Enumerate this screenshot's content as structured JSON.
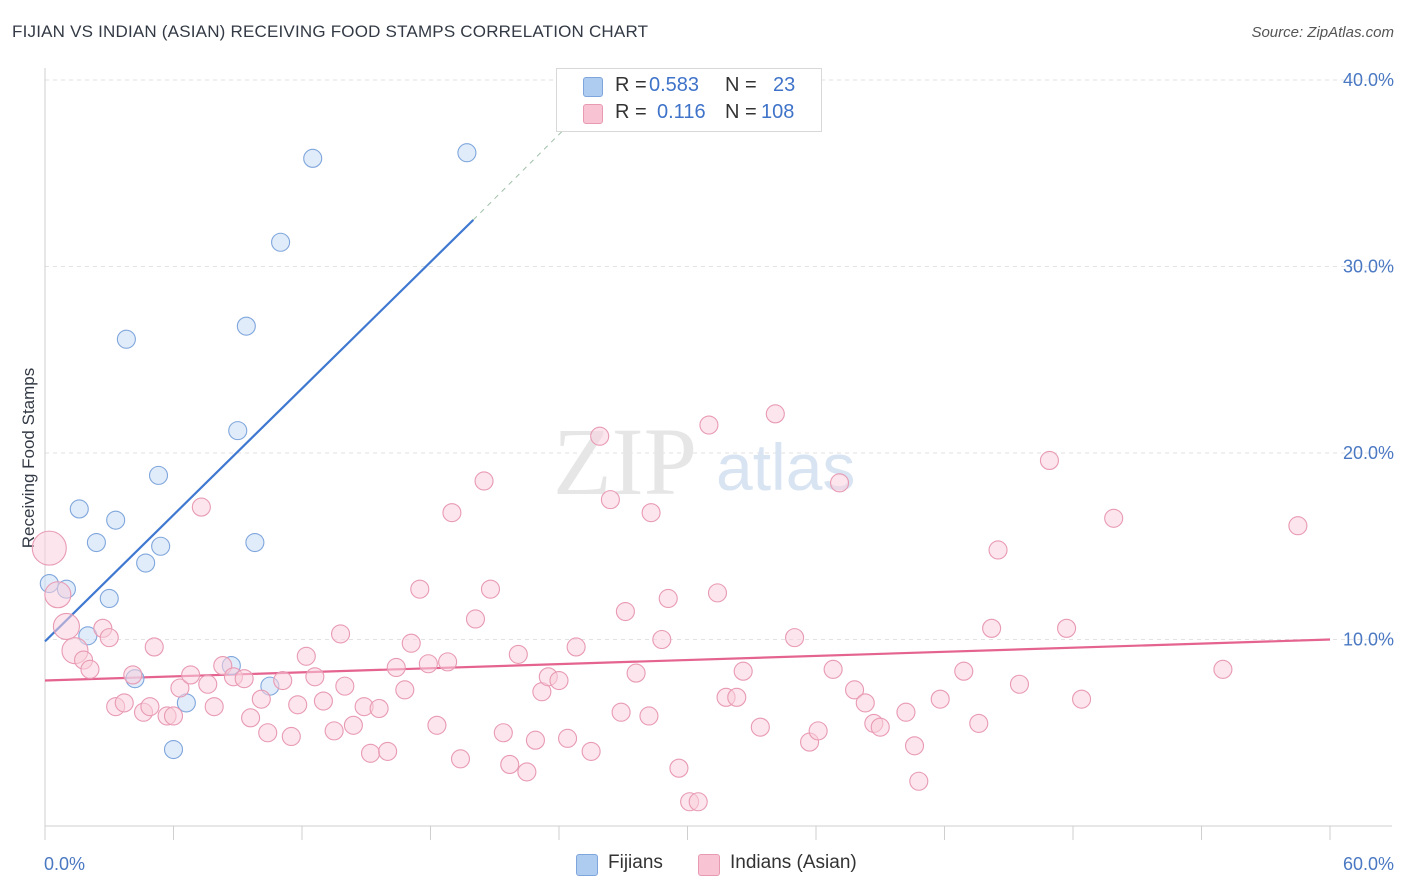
{
  "title": "FIJIAN VS INDIAN (ASIAN) RECEIVING FOOD STAMPS CORRELATION CHART",
  "source": "Source: ZipAtlas.com",
  "watermark": {
    "zip": "ZIP",
    "atlas": "atlas"
  },
  "legend": {
    "r_label": "R =",
    "n_label": "N =",
    "fijians": {
      "r": "0.583",
      "n": "23",
      "color": "#aecbf0",
      "border": "#7fa6dc"
    },
    "indians": {
      "r": "0.116",
      "n": "108",
      "color": "#f8c3d3",
      "border": "#e89ab3"
    }
  },
  "bottom_legend": {
    "fijians": "Fijians",
    "indians": "Indians (Asian)"
  },
  "chart_data": {
    "type": "scatter",
    "title": "FIJIAN VS INDIAN (ASIAN) RECEIVING FOOD STAMPS CORRELATION CHART",
    "xlabel": "",
    "ylabel": "Receiving Food Stamps",
    "xlim": [
      0,
      60
    ],
    "ylim": [
      0,
      40
    ],
    "x_ticks": [
      "0.0%",
      "60.0%"
    ],
    "y_ticks": [
      {
        "value": 10,
        "label": "10.0%"
      },
      {
        "value": 20,
        "label": "20.0%"
      },
      {
        "value": 30,
        "label": "30.0%"
      },
      {
        "value": 40,
        "label": "40.0%"
      }
    ],
    "grid": true,
    "legend_position": "top-center",
    "series": [
      {
        "name": "Fijians",
        "color": "#7fa6dc",
        "fill": "#c9dcf6",
        "trend": {
          "x": [
            0,
            20
          ],
          "y": [
            9.9,
            32.5
          ],
          "dashed_to": [
            25.5,
            38.8
          ],
          "color": "#3f78d0"
        },
        "points": [
          {
            "x": 0.2,
            "y": 13.0
          },
          {
            "x": 1.0,
            "y": 12.7
          },
          {
            "x": 1.6,
            "y": 17.0
          },
          {
            "x": 2.0,
            "y": 10.2
          },
          {
            "x": 2.4,
            "y": 15.2
          },
          {
            "x": 3.0,
            "y": 12.2
          },
          {
            "x": 3.3,
            "y": 16.4
          },
          {
            "x": 3.8,
            "y": 26.1
          },
          {
            "x": 4.2,
            "y": 7.9
          },
          {
            "x": 4.7,
            "y": 14.1
          },
          {
            "x": 5.3,
            "y": 18.8
          },
          {
            "x": 5.4,
            "y": 15.0
          },
          {
            "x": 6.0,
            "y": 4.1
          },
          {
            "x": 6.6,
            "y": 6.6
          },
          {
            "x": 8.7,
            "y": 8.6
          },
          {
            "x": 9.0,
            "y": 21.2
          },
          {
            "x": 9.4,
            "y": 26.8
          },
          {
            "x": 9.8,
            "y": 15.2
          },
          {
            "x": 10.5,
            "y": 7.5
          },
          {
            "x": 11.0,
            "y": 31.3
          },
          {
            "x": 12.5,
            "y": 35.8
          },
          {
            "x": 19.7,
            "y": 36.1
          }
        ]
      },
      {
        "name": "Indians (Asian)",
        "color": "#e89ab3",
        "fill": "#f9d0dc",
        "trend": {
          "x": [
            0,
            60
          ],
          "y": [
            7.8,
            10.0
          ],
          "color": "#e4638f"
        },
        "points": [
          {
            "x": 0.2,
            "y": 14.9,
            "big": true
          },
          {
            "x": 0.6,
            "y": 12.4,
            "big": true
          },
          {
            "x": 1.0,
            "y": 10.7,
            "big": true
          },
          {
            "x": 1.4,
            "y": 9.4,
            "big": true
          },
          {
            "x": 1.8,
            "y": 8.9
          },
          {
            "x": 2.1,
            "y": 8.4
          },
          {
            "x": 2.7,
            "y": 10.6
          },
          {
            "x": 3.0,
            "y": 10.1
          },
          {
            "x": 3.3,
            "y": 6.4
          },
          {
            "x": 3.7,
            "y": 6.6
          },
          {
            "x": 4.1,
            "y": 8.1
          },
          {
            "x": 4.6,
            "y": 6.1
          },
          {
            "x": 4.9,
            "y": 6.4
          },
          {
            "x": 5.1,
            "y": 9.6
          },
          {
            "x": 5.7,
            "y": 5.9
          },
          {
            "x": 6.0,
            "y": 5.9
          },
          {
            "x": 6.3,
            "y": 7.4
          },
          {
            "x": 6.8,
            "y": 8.1
          },
          {
            "x": 7.3,
            "y": 17.1
          },
          {
            "x": 7.6,
            "y": 7.6
          },
          {
            "x": 7.9,
            "y": 6.4
          },
          {
            "x": 8.3,
            "y": 8.6
          },
          {
            "x": 8.8,
            "y": 8.0
          },
          {
            "x": 9.3,
            "y": 7.9
          },
          {
            "x": 9.6,
            "y": 5.8
          },
          {
            "x": 10.1,
            "y": 6.8
          },
          {
            "x": 10.4,
            "y": 5.0
          },
          {
            "x": 11.1,
            "y": 7.8
          },
          {
            "x": 11.5,
            "y": 4.8
          },
          {
            "x": 11.8,
            "y": 6.5
          },
          {
            "x": 12.2,
            "y": 9.1
          },
          {
            "x": 12.6,
            "y": 8.0
          },
          {
            "x": 13.0,
            "y": 6.7
          },
          {
            "x": 13.5,
            "y": 5.1
          },
          {
            "x": 13.8,
            "y": 10.3
          },
          {
            "x": 14.0,
            "y": 7.5
          },
          {
            "x": 14.4,
            "y": 5.4
          },
          {
            "x": 14.9,
            "y": 6.4
          },
          {
            "x": 15.2,
            "y": 3.9
          },
          {
            "x": 15.6,
            "y": 6.3
          },
          {
            "x": 16.0,
            "y": 4.0
          },
          {
            "x": 16.4,
            "y": 8.5
          },
          {
            "x": 16.8,
            "y": 7.3
          },
          {
            "x": 17.1,
            "y": 9.8
          },
          {
            "x": 17.5,
            "y": 12.7
          },
          {
            "x": 17.9,
            "y": 8.7
          },
          {
            "x": 18.3,
            "y": 5.4
          },
          {
            "x": 18.8,
            "y": 8.8
          },
          {
            "x": 19.0,
            "y": 16.8
          },
          {
            "x": 19.4,
            "y": 3.6
          },
          {
            "x": 20.1,
            "y": 11.1
          },
          {
            "x": 20.5,
            "y": 18.5
          },
          {
            "x": 20.8,
            "y": 12.7
          },
          {
            "x": 21.4,
            "y": 5.0
          },
          {
            "x": 21.7,
            "y": 3.3
          },
          {
            "x": 22.1,
            "y": 9.2
          },
          {
            "x": 22.5,
            "y": 2.9
          },
          {
            "x": 22.9,
            "y": 4.6
          },
          {
            "x": 23.2,
            "y": 7.2
          },
          {
            "x": 23.5,
            "y": 8.0
          },
          {
            "x": 24.0,
            "y": 7.8
          },
          {
            "x": 24.4,
            "y": 4.7
          },
          {
            "x": 24.8,
            "y": 9.6
          },
          {
            "x": 25.5,
            "y": 4.0
          },
          {
            "x": 25.9,
            "y": 20.9
          },
          {
            "x": 26.4,
            "y": 17.5
          },
          {
            "x": 26.9,
            "y": 6.1
          },
          {
            "x": 27.1,
            "y": 11.5
          },
          {
            "x": 27.6,
            "y": 8.2
          },
          {
            "x": 28.2,
            "y": 5.9
          },
          {
            "x": 28.3,
            "y": 16.8
          },
          {
            "x": 28.8,
            "y": 10.0
          },
          {
            "x": 29.1,
            "y": 12.2
          },
          {
            "x": 29.6,
            "y": 3.1
          },
          {
            "x": 30.1,
            "y": 1.3
          },
          {
            "x": 30.5,
            "y": 1.3
          },
          {
            "x": 31.0,
            "y": 21.5
          },
          {
            "x": 31.4,
            "y": 12.5
          },
          {
            "x": 31.8,
            "y": 6.9
          },
          {
            "x": 32.3,
            "y": 6.9
          },
          {
            "x": 32.6,
            "y": 8.3
          },
          {
            "x": 33.4,
            "y": 5.3
          },
          {
            "x": 34.1,
            "y": 22.1
          },
          {
            "x": 35.0,
            "y": 10.1
          },
          {
            "x": 35.7,
            "y": 4.5
          },
          {
            "x": 36.1,
            "y": 5.1
          },
          {
            "x": 36.8,
            "y": 8.4
          },
          {
            "x": 37.1,
            "y": 18.4
          },
          {
            "x": 37.8,
            "y": 7.3
          },
          {
            "x": 38.3,
            "y": 6.6
          },
          {
            "x": 38.7,
            "y": 5.5
          },
          {
            "x": 39.0,
            "y": 5.3
          },
          {
            "x": 40.2,
            "y": 6.1
          },
          {
            "x": 40.6,
            "y": 4.3
          },
          {
            "x": 40.8,
            "y": 2.4
          },
          {
            "x": 41.8,
            "y": 6.8
          },
          {
            "x": 42.9,
            "y": 8.3
          },
          {
            "x": 43.6,
            "y": 5.5
          },
          {
            "x": 44.2,
            "y": 10.6
          },
          {
            "x": 44.5,
            "y": 14.8
          },
          {
            "x": 45.5,
            "y": 7.6
          },
          {
            "x": 46.9,
            "y": 19.6
          },
          {
            "x": 47.7,
            "y": 10.6
          },
          {
            "x": 48.4,
            "y": 6.8
          },
          {
            "x": 49.9,
            "y": 16.5
          },
          {
            "x": 55.0,
            "y": 8.4
          },
          {
            "x": 58.5,
            "y": 16.1
          }
        ]
      }
    ]
  }
}
